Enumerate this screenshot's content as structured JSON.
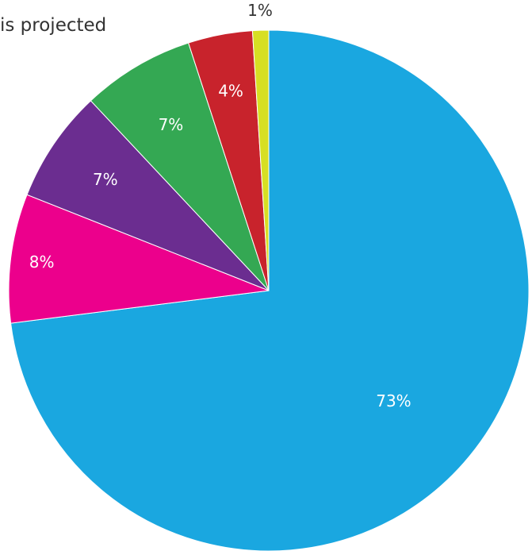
{
  "chart_data": {
    "type": "pie",
    "title": "is projected",
    "start": "12 o'clock",
    "direction": "clockwise",
    "slices": [
      {
        "label": "73%",
        "value": 73,
        "color": "#1aa7e0"
      },
      {
        "label": "8%",
        "value": 8,
        "color": "#ec008c"
      },
      {
        "label": "7%",
        "value": 7,
        "color": "#6b2d90"
      },
      {
        "label": "7%",
        "value": 7,
        "color": "#34a853"
      },
      {
        "label": "4%",
        "value": 4,
        "color": "#c8232c"
      },
      {
        "label": "1%",
        "value": 1,
        "color": "#d7df23"
      }
    ]
  }
}
